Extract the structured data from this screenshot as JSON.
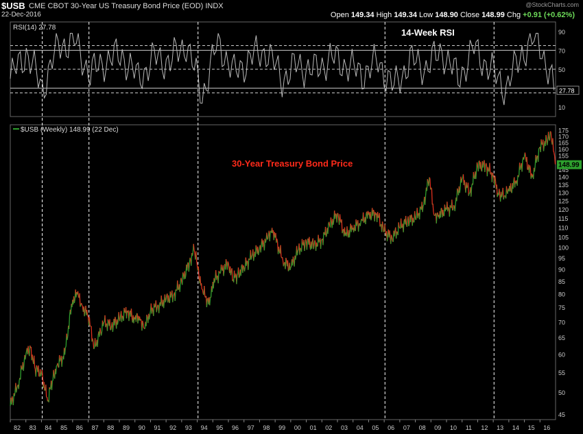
{
  "header": {
    "symbol": "$USB",
    "description": "CME CBOT 30-Year US Treasury Bond Price (EOD)  INDX",
    "date": "22-Dec-2016",
    "open_label": "Open",
    "open": "149.34",
    "high_label": "High",
    "high": "149.34",
    "low_label": "Low",
    "low": "148.90",
    "close_label": "Close",
    "close": "148.99",
    "chg_label": "Chg",
    "chg": "+0.91 (+0.62%)",
    "watermark": "@StockCharts.com"
  },
  "colors": {
    "background": "#000000",
    "up": "#2ea02e",
    "down": "#e0301e",
    "rsi_line": "#bbbbbb",
    "annotation": "#ff2a1a",
    "grid": "#555555",
    "price_tag_bg": "#2ea02e"
  },
  "chart_data": [
    {
      "type": "line",
      "title": "14-Week RSI",
      "legend": "RSI(14) 27.78",
      "current_value": "27.78",
      "ylim": [
        0,
        100
      ],
      "y_ticks": [
        "90",
        "70",
        "50",
        "30",
        "10"
      ],
      "reference_lines": [
        75,
        70,
        50,
        30,
        25
      ],
      "x": [
        "82",
        "83",
        "84",
        "85",
        "86",
        "87",
        "88",
        "89",
        "90",
        "91",
        "92",
        "93",
        "94",
        "95",
        "96",
        "97",
        "98",
        "99",
        "00",
        "01",
        "02",
        "03",
        "04",
        "05",
        "06",
        "07",
        "08",
        "09",
        "10",
        "11",
        "12",
        "13",
        "14",
        "15",
        "16"
      ],
      "values": [
        40,
        68,
        30,
        75,
        80,
        45,
        60,
        65,
        40,
        62,
        58,
        78,
        22,
        80,
        45,
        62,
        70,
        40,
        55,
        48,
        62,
        55,
        45,
        58,
        30,
        60,
        52,
        70,
        40,
        72,
        50,
        30,
        68,
        85,
        27.78
      ]
    },
    {
      "type": "line",
      "title": "30-Year Treasury Bond Price",
      "legend": "$USB (Weekly) 148.99 (22 Dec)",
      "current_value": "148.99",
      "scale": "log",
      "ylim": [
        44,
        180
      ],
      "y_ticks": [
        "175",
        "170",
        "165",
        "160",
        "155",
        "150",
        "145",
        "140",
        "135",
        "130",
        "125",
        "120",
        "115",
        "110",
        "105",
        "100",
        "95",
        "90",
        "85",
        "80",
        "75",
        "70",
        "65",
        "60",
        "55",
        "50",
        "45"
      ],
      "x_ticks": [
        "82",
        "83",
        "84",
        "85",
        "86",
        "87",
        "88",
        "89",
        "90",
        "91",
        "92",
        "93",
        "94",
        "95",
        "96",
        "97",
        "98",
        "99",
        "00",
        "01",
        "02",
        "03",
        "04",
        "05",
        "06",
        "07",
        "08",
        "09",
        "10",
        "11",
        "12",
        "13",
        "14",
        "15",
        "16"
      ],
      "vertical_markers": [
        "84",
        "87",
        "94",
        "06",
        "13"
      ],
      "x": [
        1982.0,
        1982.5,
        1983.0,
        1983.3,
        1983.6,
        1984.0,
        1984.4,
        1984.7,
        1985.0,
        1985.5,
        1986.0,
        1986.3,
        1986.6,
        1987.0,
        1987.4,
        1987.8,
        1988.0,
        1988.5,
        1989.0,
        1989.5,
        1990.0,
        1990.3,
        1990.6,
        1991.0,
        1991.5,
        1992.0,
        1992.5,
        1993.0,
        1993.5,
        1993.8,
        1994.0,
        1994.3,
        1994.8,
        1995.0,
        1995.5,
        1996.0,
        1996.3,
        1996.6,
        1997.0,
        1997.5,
        1998.0,
        1998.5,
        1998.8,
        1999.0,
        1999.5,
        2000.0,
        2000.5,
        2001.0,
        2001.5,
        2002.0,
        2002.5,
        2003.0,
        2003.5,
        2004.0,
        2004.5,
        2005.0,
        2005.5,
        2006.0,
        2006.5,
        2007.0,
        2007.5,
        2008.0,
        2008.5,
        2008.9,
        2009.2,
        2009.5,
        2010.0,
        2010.5,
        2011.0,
        2011.5,
        2012.0,
        2012.5,
        2013.0,
        2013.3,
        2013.7,
        2014.0,
        2014.5,
        2015.0,
        2015.5,
        2016.0,
        2016.5,
        2016.7,
        2016.98
      ],
      "values": [
        47,
        52,
        60,
        62,
        56,
        55,
        48,
        53,
        57,
        60,
        78,
        80,
        76,
        72,
        62,
        67,
        70,
        69,
        71,
        74,
        71,
        72,
        68,
        74,
        76,
        78,
        80,
        85,
        93,
        99,
        92,
        82,
        76,
        85,
        89,
        93,
        86,
        88,
        91,
        96,
        100,
        104,
        110,
        105,
        94,
        91,
        99,
        103,
        101,
        104,
        111,
        118,
        106,
        110,
        113,
        117,
        118,
        108,
        105,
        110,
        114,
        115,
        122,
        140,
        117,
        117,
        120,
        122,
        139,
        130,
        148,
        148,
        141,
        130,
        128,
        131,
        138,
        155,
        140,
        162,
        167,
        174,
        149
      ]
    }
  ]
}
